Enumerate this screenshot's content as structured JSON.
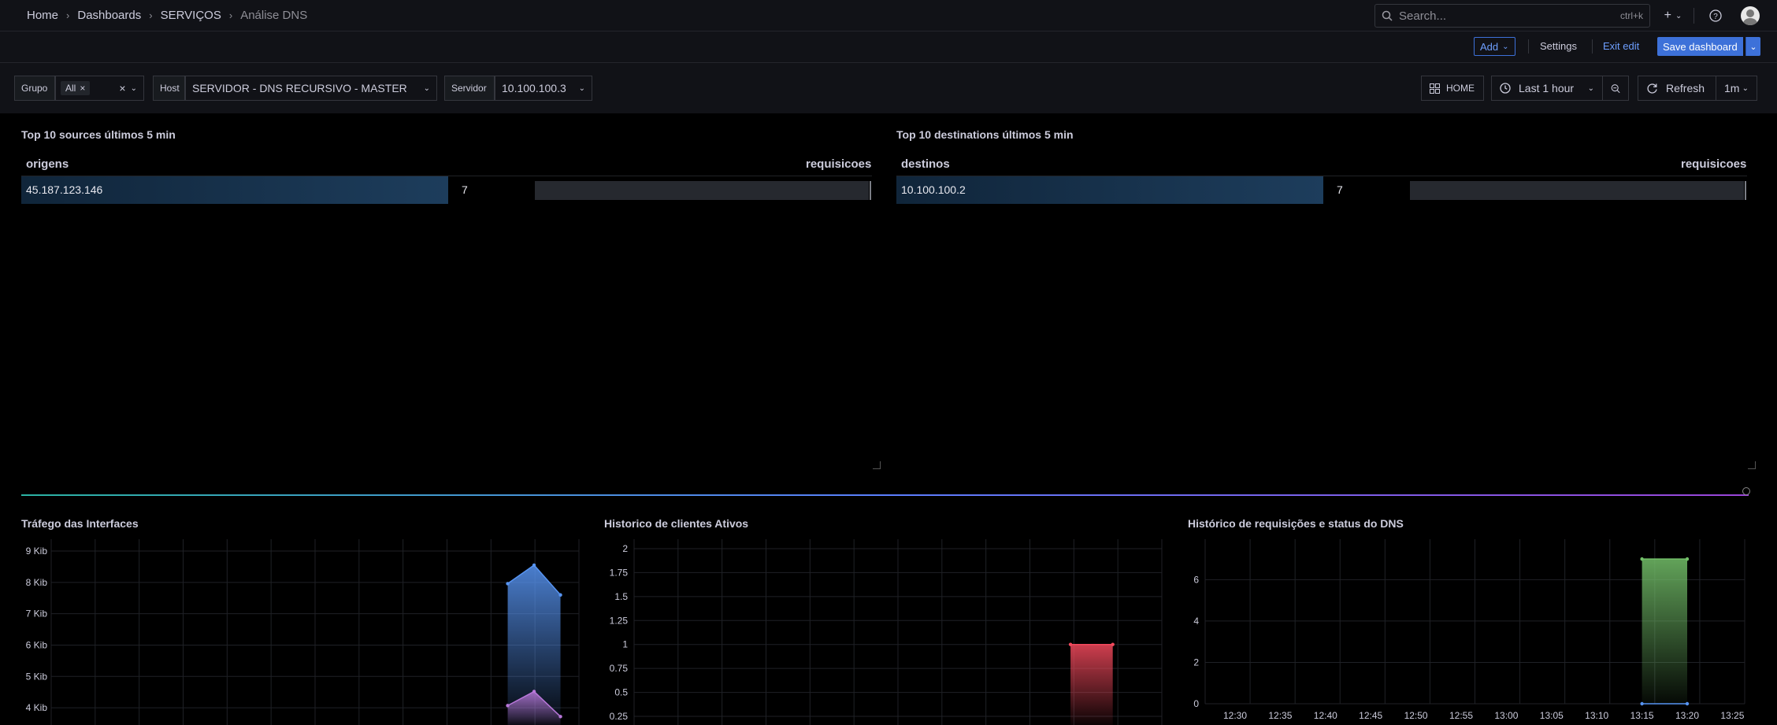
{
  "breadcrumb": [
    "Home",
    "Dashboards",
    "SERVIÇOS",
    "Análise DNS"
  ],
  "search": {
    "placeholder": "Search...",
    "shortcut": "ctrl+k"
  },
  "toolbar": {
    "add_label": "Add",
    "settings_label": "Settings",
    "exit_edit_label": "Exit edit",
    "save_label": "Save dashboard"
  },
  "variables": {
    "grupo_label": "Grupo",
    "grupo_value": "All",
    "host_label": "Host",
    "host_value": "SERVIDOR - DNS RECURSIVO - MASTER",
    "servidor_label": "Servidor",
    "servidor_value": "10.100.100.3"
  },
  "controls": {
    "home_label": "HOME",
    "time_range": "Last 1 hour",
    "refresh_label": "Refresh",
    "refresh_interval": "1m"
  },
  "panels": {
    "sources": {
      "title": "Top 10 sources últimos 5 min",
      "col1": "origens",
      "col2": "requisicoes",
      "rows": [
        {
          "name": "45.187.123.146",
          "value": "7"
        }
      ]
    },
    "destinations": {
      "title": "Top 10 destinations últimos 5 min",
      "col1": "destinos",
      "col2": "requisicoes",
      "rows": [
        {
          "name": "10.100.100.2",
          "value": "7"
        }
      ]
    },
    "traffic": {
      "title": "Tráfego das Interfaces"
    },
    "clients": {
      "title": "Historico de clientes Ativos"
    },
    "requests": {
      "title": "Histórico de requisições e status do DNS"
    }
  },
  "chart_data": [
    {
      "type": "area",
      "title": "Tráfego das Interfaces",
      "yticks": [
        "4 Kib",
        "5 Kib",
        "6 Kib",
        "7 Kib",
        "8 Kib",
        "9 Kib"
      ],
      "ylim_kib": [
        3.2,
        9
      ],
      "series": [
        {
          "color": "#5794f2",
          "points": [
            [
              0,
              7.96
            ],
            [
              1,
              8.55
            ],
            [
              2,
              7.6
            ]
          ]
        },
        {
          "color": "#b877d9",
          "points": [
            [
              0,
              4.07
            ],
            [
              1,
              4.52
            ],
            [
              2,
              3.72
            ]
          ]
        }
      ],
      "x_fraction_range": [
        0.865,
        0.965
      ]
    },
    {
      "type": "area",
      "title": "Historico de clientes Ativos",
      "yticks": [
        "0.25",
        "0.5",
        "0.75",
        "1",
        "1.25",
        "1.5",
        "1.75",
        "2"
      ],
      "ylim": [
        0.25,
        2
      ],
      "series": [
        {
          "color": "#f2495c",
          "points": [
            [
              0,
              1
            ],
            [
              1,
              1
            ]
          ]
        }
      ],
      "x_fraction_range": [
        0.827,
        0.907
      ]
    },
    {
      "type": "area",
      "title": "Histórico de requisições e status do DNS",
      "yticks": [
        "0",
        "2",
        "4",
        "6"
      ],
      "ylim": [
        0,
        7.5
      ],
      "xticks": [
        "12:30",
        "12:35",
        "12:40",
        "12:45",
        "12:50",
        "12:55",
        "13:00",
        "13:05",
        "13:10",
        "13:15",
        "13:20",
        "13:25"
      ],
      "series": [
        {
          "color": "#73bf69",
          "points": [
            [
              "13:15",
              7
            ],
            [
              "13:20",
              7
            ]
          ]
        },
        {
          "color": "#5794f2",
          "points": [
            [
              "13:15",
              0
            ],
            [
              "13:20",
              0
            ]
          ]
        }
      ]
    }
  ]
}
